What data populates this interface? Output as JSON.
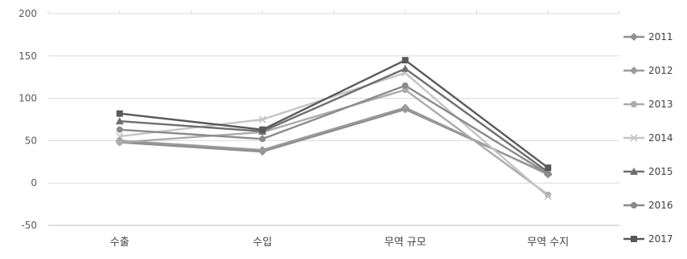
{
  "chart_data": {
    "type": "line",
    "categories": [
      "수출",
      "수입",
      "무역 규모",
      "무역 수지"
    ],
    "ylim": [
      -50,
      200
    ],
    "yticks": [
      -50,
      0,
      50,
      100,
      150,
      200
    ],
    "grid": true,
    "legend_position": "right",
    "series": [
      {
        "name": "2011",
        "color": "#8f8f8f",
        "marker": "diamond",
        "values": [
          48,
          37,
          87,
          11
        ]
      },
      {
        "name": "2012",
        "color": "#9a9a9a",
        "marker": "diamond",
        "values": [
          50,
          39,
          89,
          10
        ]
      },
      {
        "name": "2013",
        "color": "#ababab",
        "marker": "circle",
        "values": [
          48,
          60,
          110,
          -14
        ]
      },
      {
        "name": "2014",
        "color": "#c4c4c4",
        "marker": "x",
        "values": [
          55,
          75,
          130,
          -16
        ]
      },
      {
        "name": "2015",
        "color": "#6e6e6e",
        "marker": "triangle",
        "values": [
          73,
          61,
          135,
          13
        ]
      },
      {
        "name": "2016",
        "color": "#8a8a8a",
        "marker": "circle",
        "values": [
          63,
          52,
          115,
          11
        ]
      },
      {
        "name": "2017",
        "color": "#595959",
        "marker": "square",
        "values": [
          82,
          63,
          145,
          18
        ]
      }
    ]
  }
}
